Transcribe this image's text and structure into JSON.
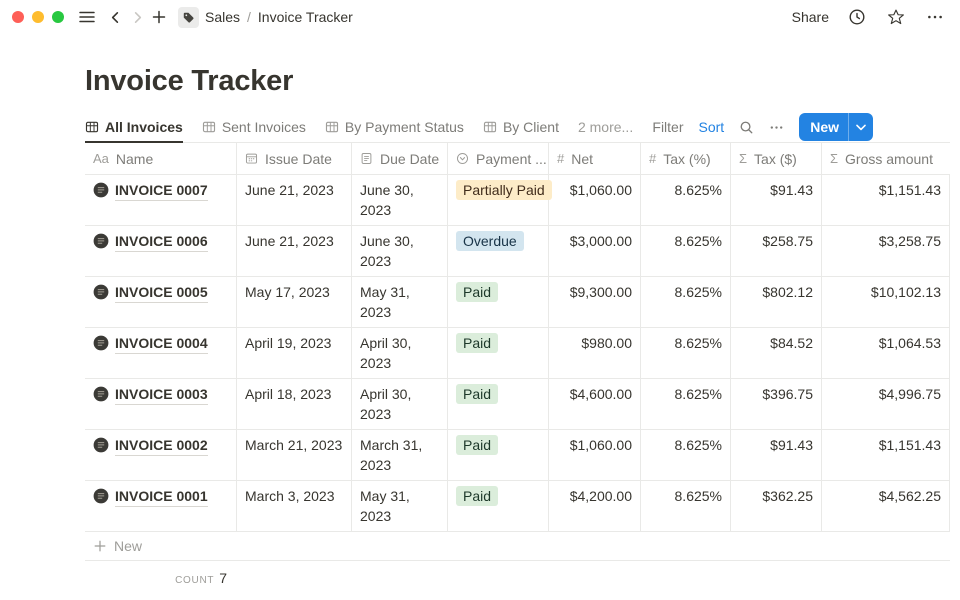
{
  "topbar": {
    "breadcrumb": {
      "workspace": "Sales",
      "separator": "/",
      "page": "Invoice Tracker"
    },
    "share_label": "Share"
  },
  "title": "Invoice Tracker",
  "toolbar": {
    "tabs": [
      {
        "label": "All Invoices",
        "active": true
      },
      {
        "label": "Sent Invoices",
        "active": false
      },
      {
        "label": "By Payment Status",
        "active": false
      },
      {
        "label": "By Client",
        "active": false
      }
    ],
    "more_label": "2 more...",
    "filter_label": "Filter",
    "sort_label": "Sort",
    "new_label": "New"
  },
  "table": {
    "columns": [
      {
        "label": "Name",
        "icon": "text-icon",
        "key": "name",
        "type": "link"
      },
      {
        "label": "Issue Date",
        "icon": "calendar-icon",
        "key": "issue_date",
        "type": "text"
      },
      {
        "label": "Due Date",
        "icon": "doc-icon",
        "key": "due_date",
        "type": "text"
      },
      {
        "label": "Payment ...",
        "icon": "select-icon",
        "key": "status",
        "type": "badge"
      },
      {
        "label": "Net",
        "icon": "hash-icon",
        "key": "net",
        "type": "number"
      },
      {
        "label": "Tax (%)",
        "icon": "hash-icon",
        "key": "tax_pct",
        "type": "number"
      },
      {
        "label": "Tax ($)",
        "icon": "sigma-icon",
        "key": "tax_usd",
        "type": "number"
      },
      {
        "label": "Gross amount",
        "icon": "sigma-icon",
        "key": "gross",
        "type": "number"
      }
    ],
    "rows": [
      {
        "name": "INVOICE 0007",
        "issue_date": "June 21, 2023",
        "due_date": "June 30, 2023",
        "status": "Partially Paid",
        "net": "$1,060.00",
        "tax_pct": "8.625%",
        "tax_usd": "$91.43",
        "gross": "$1,151.43",
        "tall": false
      },
      {
        "name": "INVOICE 0006",
        "issue_date": "June 21, 2023",
        "due_date": "June 30, 2023",
        "status": "Overdue",
        "net": "$3,000.00",
        "tax_pct": "8.625%",
        "tax_usd": "$258.75",
        "gross": "$3,258.75",
        "tall": true
      },
      {
        "name": "INVOICE 0005",
        "issue_date": "May 17, 2023",
        "due_date": "May 31, 2023",
        "status": "Paid",
        "net": "$9,300.00",
        "tax_pct": "8.625%",
        "tax_usd": "$802.12",
        "gross": "$10,102.13",
        "tall": false
      },
      {
        "name": "INVOICE 0004",
        "issue_date": "April 19, 2023",
        "due_date": "April 30, 2023",
        "status": "Paid",
        "net": "$980.00",
        "tax_pct": "8.625%",
        "tax_usd": "$84.52",
        "gross": "$1,064.53",
        "tall": true
      },
      {
        "name": "INVOICE 0003",
        "issue_date": "April 18, 2023",
        "due_date": "April 30, 2023",
        "status": "Paid",
        "net": "$4,600.00",
        "tax_pct": "8.625%",
        "tax_usd": "$396.75",
        "gross": "$4,996.75",
        "tall": false
      },
      {
        "name": "INVOICE 0002",
        "issue_date": "March 21, 2023",
        "due_date": "March 31, 2023",
        "status": "Paid",
        "net": "$1,060.00",
        "tax_pct": "8.625%",
        "tax_usd": "$91.43",
        "gross": "$1,151.43",
        "tall": true
      },
      {
        "name": "INVOICE 0001",
        "issue_date": "March 3, 2023",
        "due_date": "May 31, 2023",
        "status": "Paid",
        "net": "$4,200.00",
        "tax_pct": "8.625%",
        "tax_usd": "$362.25",
        "gross": "$4,562.25",
        "tall": true
      }
    ],
    "new_row_label": "New",
    "count_label": "COUNT",
    "count_value": "7"
  },
  "colors": {
    "accent_blue": "#2383e2",
    "traffic_red": "#fe5f57",
    "traffic_yellow": "#febc2e",
    "traffic_green": "#28c840",
    "border": "#e9e9e7",
    "status_colors": {
      "Partially Paid": {
        "bg": "#fdecc8",
        "fg": "#402c1b"
      },
      "Overdue": {
        "bg": "#d3e5ef",
        "fg": "#183347"
      },
      "Paid": {
        "bg": "#dbeddb",
        "fg": "#1c3829"
      }
    }
  }
}
